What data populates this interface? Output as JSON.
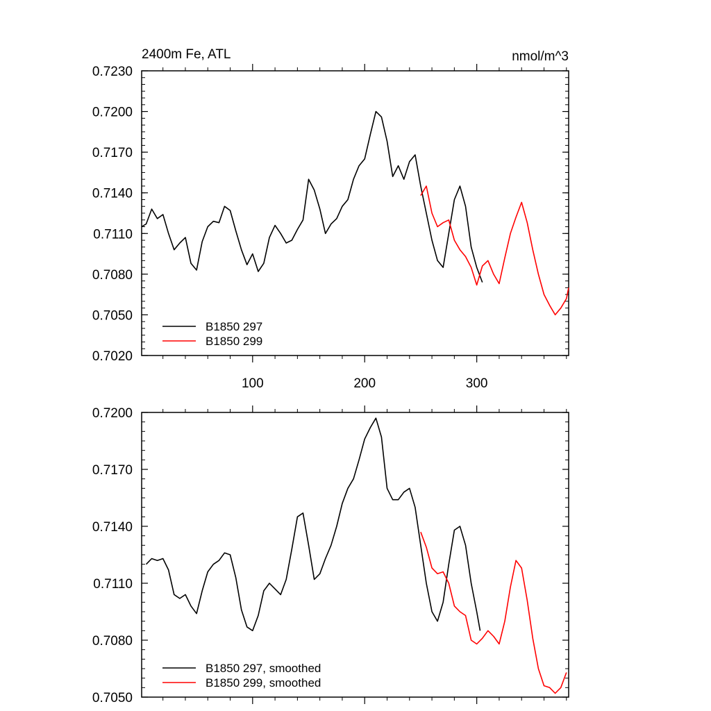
{
  "chart_data": [
    {
      "type": "line",
      "title_left": "2400m Fe, ATL",
      "title_right": "nmol/m^3",
      "xlim": [
        1,
        382
      ],
      "ylim": [
        0.702,
        0.723
      ],
      "y_ticks": [
        "0.7230",
        "0.7200",
        "0.7170",
        "0.7140",
        "0.7110",
        "0.7080",
        "0.7050",
        "0.7020"
      ],
      "x_ticks": [
        "100",
        "200",
        "300"
      ],
      "series": [
        {
          "name": "B1850 297",
          "color": "#000000",
          "x": [
            1,
            5,
            10,
            15,
            20,
            25,
            30,
            35,
            40,
            45,
            50,
            55,
            60,
            65,
            70,
            75,
            80,
            85,
            90,
            95,
            100,
            105,
            110,
            115,
            120,
            125,
            130,
            135,
            140,
            145,
            150,
            155,
            160,
            165,
            170,
            175,
            180,
            185,
            190,
            195,
            200,
            205,
            210,
            215,
            220,
            225,
            230,
            235,
            240,
            245,
            250,
            255,
            260,
            265,
            270,
            275,
            280,
            285,
            290,
            295,
            300,
            305
          ],
          "values": [
            0.7115,
            0.7117,
            0.7128,
            0.7121,
            0.7124,
            0.711,
            0.7098,
            0.7103,
            0.7107,
            0.7088,
            0.7083,
            0.7104,
            0.7115,
            0.7119,
            0.7118,
            0.713,
            0.7127,
            0.7112,
            0.7098,
            0.7087,
            0.7095,
            0.7082,
            0.7088,
            0.7107,
            0.7116,
            0.711,
            0.7103,
            0.7105,
            0.7113,
            0.712,
            0.715,
            0.7142,
            0.7128,
            0.711,
            0.7117,
            0.7121,
            0.713,
            0.7135,
            0.715,
            0.716,
            0.7165,
            0.7183,
            0.72,
            0.7196,
            0.7178,
            0.7152,
            0.716,
            0.715,
            0.7163,
            0.7168,
            0.7145,
            0.7125,
            0.7105,
            0.709,
            0.7085,
            0.711,
            0.7135,
            0.7145,
            0.713,
            0.71,
            0.7085,
            0.7074
          ]
        },
        {
          "name": "B1850 299",
          "color": "#ff0000",
          "x": [
            250,
            255,
            260,
            265,
            270,
            275,
            280,
            285,
            290,
            295,
            300,
            305,
            310,
            315,
            320,
            325,
            330,
            335,
            340,
            345,
            350,
            355,
            360,
            365,
            370,
            375,
            380,
            382
          ],
          "values": [
            0.7138,
            0.7145,
            0.7125,
            0.7115,
            0.7118,
            0.712,
            0.7105,
            0.7098,
            0.7093,
            0.7085,
            0.7072,
            0.7086,
            0.709,
            0.708,
            0.7073,
            0.7092,
            0.711,
            0.7122,
            0.7133,
            0.7118,
            0.7098,
            0.708,
            0.7065,
            0.7057,
            0.705,
            0.7055,
            0.7062,
            0.707
          ]
        }
      ]
    },
    {
      "type": "line",
      "xlim": [
        1,
        382
      ],
      "ylim": [
        0.705,
        0.72
      ],
      "y_ticks": [
        "0.7200",
        "0.7170",
        "0.7140",
        "0.7110",
        "0.7080",
        "0.7050"
      ],
      "series": [
        {
          "name": "B1850 297, smoothed",
          "color": "#000000",
          "x": [
            5,
            10,
            15,
            20,
            25,
            30,
            35,
            40,
            45,
            50,
            55,
            60,
            65,
            70,
            75,
            80,
            85,
            90,
            95,
            100,
            105,
            110,
            115,
            120,
            125,
            130,
            135,
            140,
            145,
            150,
            155,
            160,
            165,
            170,
            175,
            180,
            185,
            190,
            195,
            200,
            205,
            210,
            215,
            220,
            225,
            230,
            235,
            240,
            245,
            250,
            255,
            260,
            265,
            270,
            275,
            280,
            285,
            290,
            295,
            300,
            303
          ],
          "values": [
            0.712,
            0.7123,
            0.7122,
            0.7123,
            0.7117,
            0.7104,
            0.7102,
            0.7104,
            0.7098,
            0.7094,
            0.7106,
            0.7116,
            0.712,
            0.7122,
            0.7126,
            0.7125,
            0.7113,
            0.7096,
            0.7087,
            0.7085,
            0.7093,
            0.7106,
            0.711,
            0.7107,
            0.7104,
            0.7112,
            0.7128,
            0.7145,
            0.7147,
            0.713,
            0.7112,
            0.7115,
            0.7123,
            0.713,
            0.714,
            0.7152,
            0.716,
            0.7165,
            0.7175,
            0.7186,
            0.7192,
            0.7197,
            0.7187,
            0.716,
            0.7154,
            0.7154,
            0.7158,
            0.716,
            0.715,
            0.713,
            0.711,
            0.7095,
            0.709,
            0.71,
            0.712,
            0.7138,
            0.714,
            0.713,
            0.711,
            0.7095,
            0.7085
          ]
        },
        {
          "name": "B1850 299, smoothed",
          "color": "#ff0000",
          "x": [
            250,
            255,
            260,
            265,
            270,
            275,
            280,
            285,
            290,
            295,
            300,
            305,
            310,
            315,
            320,
            325,
            330,
            335,
            340,
            345,
            350,
            355,
            360,
            365,
            370,
            375,
            380
          ],
          "values": [
            0.7137,
            0.7129,
            0.7118,
            0.7115,
            0.7116,
            0.711,
            0.7098,
            0.7095,
            0.7093,
            0.708,
            0.7078,
            0.7081,
            0.7085,
            0.7082,
            0.7078,
            0.709,
            0.7108,
            0.7122,
            0.7118,
            0.7101,
            0.7081,
            0.7065,
            0.7056,
            0.7055,
            0.7052,
            0.7055,
            0.7063
          ]
        }
      ]
    }
  ]
}
